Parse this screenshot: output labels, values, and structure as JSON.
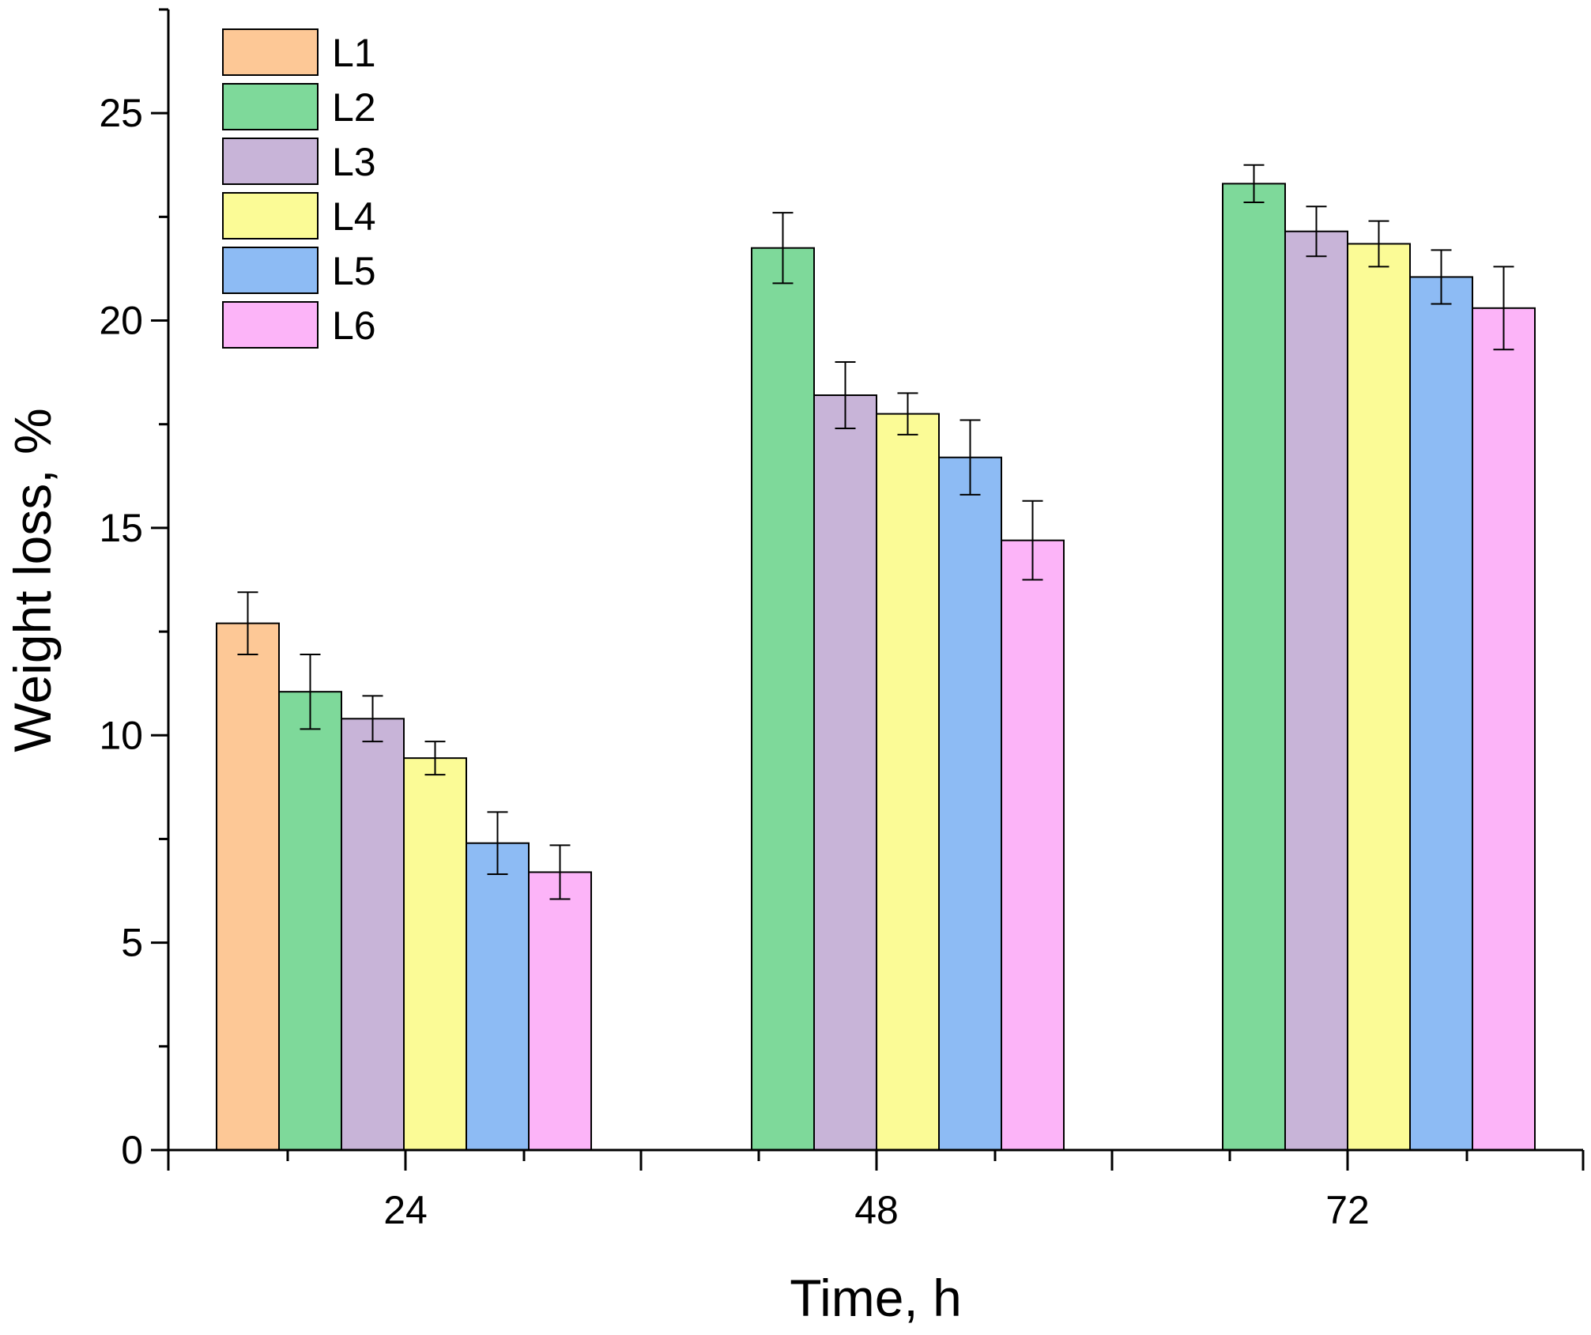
{
  "chart_data": {
    "type": "bar",
    "title": "",
    "xlabel": "Time, h",
    "ylabel": "Weight loss, %",
    "ylim": [
      0,
      27.5
    ],
    "yticks": [
      0,
      5,
      10,
      15,
      20,
      25
    ],
    "ytick_labels": [
      "0",
      "5",
      "10",
      "15",
      "20",
      "25"
    ],
    "legend_position": "top-left",
    "categories": [
      "24",
      "48",
      "72"
    ],
    "series": [
      {
        "name": "L1",
        "color": "#FDC896",
        "values": [
          12.7,
          null,
          null
        ],
        "errors": [
          0.75,
          null,
          null
        ]
      },
      {
        "name": "L2",
        "color": "#7ED99A",
        "values": [
          11.05,
          21.75,
          23.3
        ],
        "errors": [
          0.9,
          0.85,
          0.45
        ]
      },
      {
        "name": "L3",
        "color": "#C8B4D8",
        "values": [
          10.4,
          18.2,
          22.15
        ],
        "errors": [
          0.55,
          0.8,
          0.6
        ]
      },
      {
        "name": "L4",
        "color": "#FBFB96",
        "values": [
          9.45,
          17.75,
          21.85
        ],
        "errors": [
          0.4,
          0.5,
          0.55
        ]
      },
      {
        "name": "L5",
        "color": "#8DBBF4",
        "values": [
          7.4,
          16.7,
          21.05
        ],
        "errors": [
          0.75,
          0.9,
          0.65
        ]
      },
      {
        "name": "L6",
        "color": "#FCB4F8",
        "values": [
          6.7,
          14.7,
          20.3
        ],
        "errors": [
          0.65,
          0.95,
          1.0
        ]
      }
    ]
  }
}
